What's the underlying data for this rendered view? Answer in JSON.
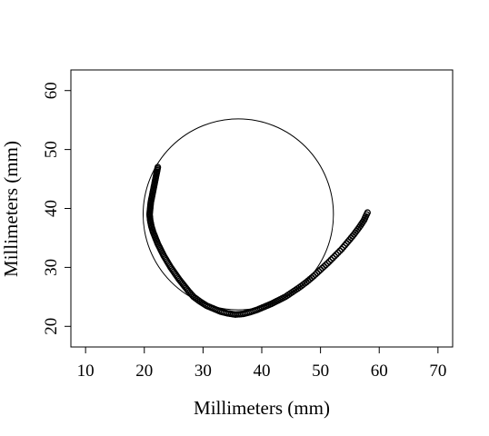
{
  "chart_data": {
    "type": "scatter",
    "title": "",
    "xlabel": "Millimeters (mm)",
    "ylabel": "Millimeters (mm)",
    "xlim": [
      7.5,
      72.5
    ],
    "ylim": [
      16.5,
      63.5
    ],
    "xticks": [
      10,
      20,
      30,
      40,
      50,
      60,
      70
    ],
    "yticks": [
      20,
      30,
      40,
      50,
      60
    ],
    "grid": false,
    "legend": "none",
    "circle": {
      "center": [
        36,
        39
      ],
      "radius": 16.2
    },
    "path_points": [
      [
        22.3,
        47.0
      ],
      [
        22.1,
        46.0
      ],
      [
        21.9,
        45.0
      ],
      [
        21.7,
        44.0
      ],
      [
        21.5,
        43.0
      ],
      [
        21.3,
        42.0
      ],
      [
        21.1,
        41.0
      ],
      [
        21.0,
        40.0
      ],
      [
        20.9,
        39.0
      ],
      [
        21.0,
        38.0
      ],
      [
        21.2,
        37.0
      ],
      [
        21.5,
        36.0
      ],
      [
        21.9,
        35.0
      ],
      [
        22.3,
        34.0
      ],
      [
        22.8,
        33.0
      ],
      [
        23.3,
        32.0
      ],
      [
        23.9,
        31.0
      ],
      [
        24.5,
        30.0
      ],
      [
        25.2,
        29.0
      ],
      [
        25.9,
        28.0
      ],
      [
        26.7,
        27.0
      ],
      [
        27.5,
        26.0
      ],
      [
        28.4,
        25.0
      ],
      [
        29.5,
        24.2
      ],
      [
        30.6,
        23.5
      ],
      [
        31.8,
        23.0
      ],
      [
        33.0,
        22.5
      ],
      [
        34.2,
        22.2
      ],
      [
        35.5,
        22.0
      ],
      [
        36.8,
        22.1
      ],
      [
        38.0,
        22.4
      ],
      [
        39.2,
        22.8
      ],
      [
        40.4,
        23.3
      ],
      [
        41.6,
        23.8
      ],
      [
        42.8,
        24.4
      ],
      [
        44.0,
        25.0
      ],
      [
        45.2,
        25.8
      ],
      [
        46.4,
        26.6
      ],
      [
        47.6,
        27.5
      ],
      [
        48.8,
        28.5
      ],
      [
        50.0,
        29.6
      ],
      [
        51.2,
        30.7
      ],
      [
        52.4,
        31.9
      ],
      [
        53.6,
        33.1
      ],
      [
        54.7,
        34.4
      ],
      [
        55.7,
        35.6
      ],
      [
        56.6,
        36.8
      ],
      [
        57.4,
        38.0
      ],
      [
        58.0,
        39.3
      ]
    ]
  }
}
